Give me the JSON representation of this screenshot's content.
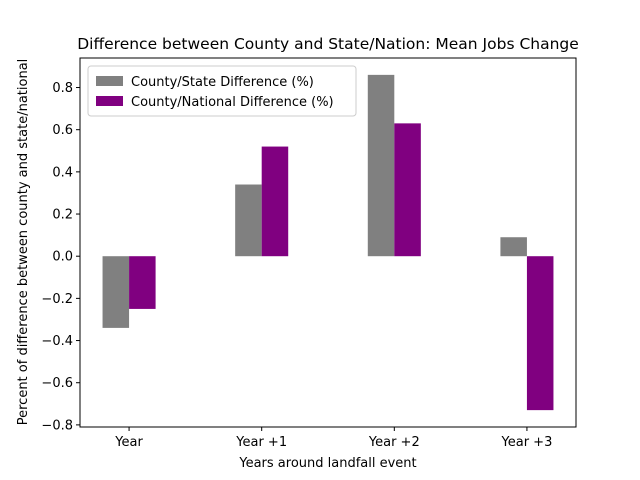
{
  "chart_data": {
    "type": "bar",
    "title": "Difference between County and State/Nation: Mean Jobs Change",
    "x_label": "Years around landfall event",
    "y_label": "Percent of difference between county and state/national",
    "categories": [
      "Year",
      "Year +1",
      "Year +2",
      "Year +3"
    ],
    "series": [
      {
        "name": "County/State Difference (%)",
        "color": "#808080",
        "values": [
          -0.34,
          0.34,
          0.86,
          0.09
        ]
      },
      {
        "name": "County/National Difference (%)",
        "color": "#800080",
        "values": [
          -0.25,
          0.52,
          0.63,
          -0.73
        ]
      }
    ],
    "ylim": [
      -0.81,
      0.94
    ],
    "yticks": [
      {
        "value": -0.8,
        "label": "−0.8"
      },
      {
        "value": -0.6,
        "label": "−0.6"
      },
      {
        "value": -0.4,
        "label": "−0.4"
      },
      {
        "value": -0.2,
        "label": "−0.2"
      },
      {
        "value": 0,
        "label": "0.0"
      },
      {
        "value": 0.2,
        "label": "0.2"
      },
      {
        "value": 0.4,
        "label": "0.4"
      },
      {
        "value": 0.6,
        "label": "0.6"
      },
      {
        "value": 0.8,
        "label": "0.8"
      }
    ],
    "legend": "upper left",
    "grid": false
  }
}
